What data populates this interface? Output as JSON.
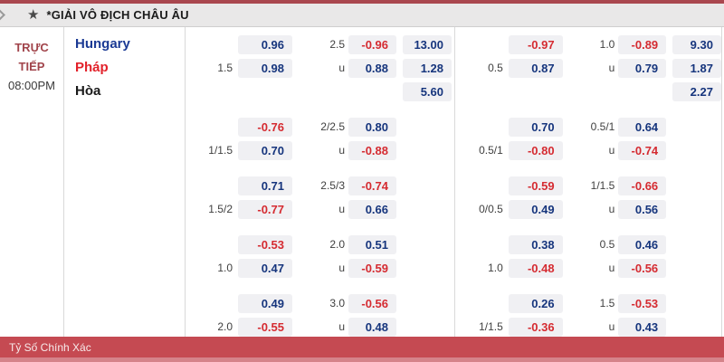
{
  "header": {
    "star_icon": "★",
    "title": "*GIẢI VÔ ĐỊCH CHÂU ÂU"
  },
  "match": {
    "status_line1": "TRỰC",
    "status_line2": "TIẾP",
    "time": "08:00PM",
    "teams": [
      {
        "name": "Hungary",
        "color": "#1b3a94"
      },
      {
        "name": "Pháp",
        "color": "#e2212a"
      },
      {
        "name": "Hòa",
        "color": "#1a1a1a"
      }
    ]
  },
  "colors": {
    "positive_odds": "#16357d",
    "negative_odds": "#d52b31",
    "accent_red_bar": "#c54a52",
    "header_bg": "#e9e8e8"
  },
  "odds_blocks": [
    {
      "groups": [
        {
          "rows": [
            {
              "hdp_line": "",
              "hdp": "0.96",
              "ou_line": "2.5",
              "ou": "-0.96",
              "x12": "13.00"
            },
            {
              "hdp_line": "1.5",
              "hdp": "0.98",
              "ou_line": "u",
              "ou": "0.88",
              "x12": "1.28"
            },
            {
              "hdp_line": "",
              "hdp": "",
              "ou_line": "",
              "ou": "",
              "x12": "5.60"
            }
          ]
        },
        {
          "rows": [
            {
              "hdp_line": "",
              "hdp": "-0.76",
              "ou_line": "2/2.5",
              "ou": "0.80",
              "x12": ""
            },
            {
              "hdp_line": "1/1.5",
              "hdp": "0.70",
              "ou_line": "u",
              "ou": "-0.88",
              "x12": ""
            }
          ]
        },
        {
          "rows": [
            {
              "hdp_line": "",
              "hdp": "0.71",
              "ou_line": "2.5/3",
              "ou": "-0.74",
              "x12": ""
            },
            {
              "hdp_line": "1.5/2",
              "hdp": "-0.77",
              "ou_line": "u",
              "ou": "0.66",
              "x12": ""
            }
          ]
        },
        {
          "rows": [
            {
              "hdp_line": "",
              "hdp": "-0.53",
              "ou_line": "2.0",
              "ou": "0.51",
              "x12": ""
            },
            {
              "hdp_line": "1.0",
              "hdp": "0.47",
              "ou_line": "u",
              "ou": "-0.59",
              "x12": ""
            }
          ]
        },
        {
          "rows": [
            {
              "hdp_line": "",
              "hdp": "0.49",
              "ou_line": "3.0",
              "ou": "-0.56",
              "x12": ""
            },
            {
              "hdp_line": "2.0",
              "hdp": "-0.55",
              "ou_line": "u",
              "ou": "0.48",
              "x12": ""
            }
          ]
        }
      ]
    },
    {
      "groups": [
        {
          "rows": [
            {
              "hdp_line": "",
              "hdp": "-0.97",
              "ou_line": "1.0",
              "ou": "-0.89",
              "x12": "9.30"
            },
            {
              "hdp_line": "0.5",
              "hdp": "0.87",
              "ou_line": "u",
              "ou": "0.79",
              "x12": "1.87"
            },
            {
              "hdp_line": "",
              "hdp": "",
              "ou_line": "",
              "ou": "",
              "x12": "2.27"
            }
          ]
        },
        {
          "rows": [
            {
              "hdp_line": "",
              "hdp": "0.70",
              "ou_line": "0.5/1",
              "ou": "0.64",
              "x12": ""
            },
            {
              "hdp_line": "0.5/1",
              "hdp": "-0.80",
              "ou_line": "u",
              "ou": "-0.74",
              "x12": ""
            }
          ]
        },
        {
          "rows": [
            {
              "hdp_line": "",
              "hdp": "-0.59",
              "ou_line": "1/1.5",
              "ou": "-0.66",
              "x12": ""
            },
            {
              "hdp_line": "0/0.5",
              "hdp": "0.49",
              "ou_line": "u",
              "ou": "0.56",
              "x12": ""
            }
          ]
        },
        {
          "rows": [
            {
              "hdp_line": "",
              "hdp": "0.38",
              "ou_line": "0.5",
              "ou": "0.46",
              "x12": ""
            },
            {
              "hdp_line": "1.0",
              "hdp": "-0.48",
              "ou_line": "u",
              "ou": "-0.56",
              "x12": ""
            }
          ]
        },
        {
          "rows": [
            {
              "hdp_line": "",
              "hdp": "0.26",
              "ou_line": "1.5",
              "ou": "-0.53",
              "x12": ""
            },
            {
              "hdp_line": "1/1.5",
              "hdp": "-0.36",
              "ou_line": "u",
              "ou": "0.43",
              "x12": ""
            }
          ]
        }
      ]
    }
  ],
  "footer": {
    "label": "Tỷ Số Chính Xác"
  }
}
